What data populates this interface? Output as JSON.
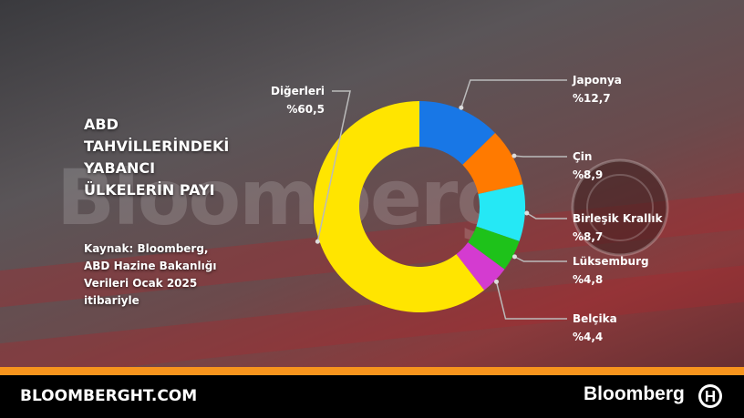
{
  "chart_data": {
    "type": "donut",
    "title": "ABD TAHVİLLERİNDEKİ YABANCI ÜLKELERİN PAYI",
    "subtitle": "Kaynak: Bloomberg, ABD Hazine Bakanlığı Verileri Ocak 2025 itibariyle",
    "categories": [
      "Japonya",
      "Çin",
      "Birleşik Krallık",
      "Lüksemburg",
      "Belçika",
      "Diğerleri"
    ],
    "values": [
      12.7,
      8.9,
      8.7,
      4.8,
      4.4,
      60.5
    ],
    "value_labels": [
      "%12,7",
      "%8,9",
      "%8,7",
      "%4,8",
      "%4,4",
      "%60,5"
    ],
    "colors": [
      "#1877e6",
      "#ff7a00",
      "#25e8f5",
      "#1ec21a",
      "#d43bd0",
      "#ffe500"
    ]
  },
  "watermark": "Bloomberg",
  "footer": {
    "site": "BLOOMBERGHT.COM",
    "brand": "Bloomberg"
  }
}
